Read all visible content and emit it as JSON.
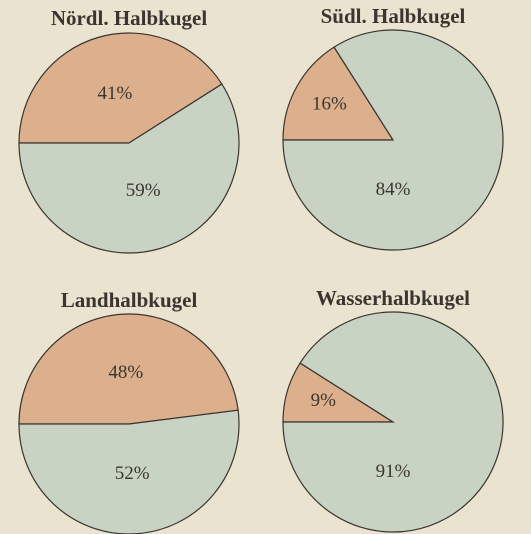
{
  "chart_data": [
    {
      "type": "pie",
      "title": "Nördl. Halbkugel",
      "values": [
        41,
        59
      ],
      "value_labels": [
        "41%",
        "59%"
      ],
      "colors": [
        "#dcb08d",
        "#c9d3c4"
      ]
    },
    {
      "type": "pie",
      "title": "Südl. Halbkugel",
      "values": [
        16,
        84
      ],
      "value_labels": [
        "16%",
        "84%"
      ],
      "colors": [
        "#dcb08d",
        "#c9d3c4"
      ]
    },
    {
      "type": "pie",
      "title": "Landhalbkugel",
      "values": [
        48,
        52
      ],
      "value_labels": [
        "48%",
        "52%"
      ],
      "colors": [
        "#dcb08d",
        "#c9d3c4"
      ]
    },
    {
      "type": "pie",
      "title": "Wasserhalbkugel",
      "values": [
        9,
        91
      ],
      "value_labels": [
        "9%",
        "91%"
      ],
      "colors": [
        "#dcb08d",
        "#c9d3c4"
      ]
    }
  ]
}
